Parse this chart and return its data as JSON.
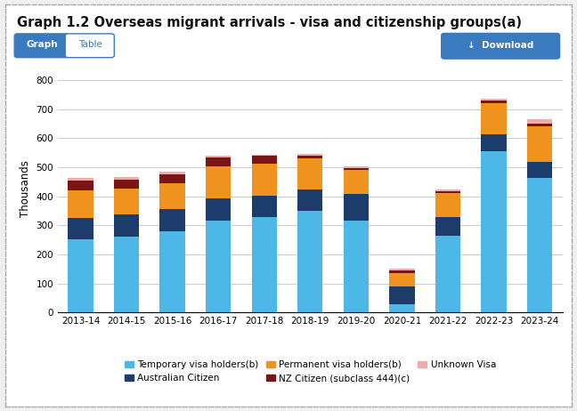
{
  "title": "Graph 1.2 Overseas migrant arrivals - visa and citizenship groups(a)",
  "ylabel": "Thousands",
  "categories": [
    "2013-14",
    "2014-15",
    "2015-16",
    "2016-17",
    "2017-18",
    "2018-19",
    "2019-20",
    "2020-21",
    "2021-22",
    "2022-23",
    "2023-24"
  ],
  "series": {
    "Temporary visa holders(b)": [
      253,
      262,
      280,
      315,
      330,
      350,
      315,
      28,
      265,
      555,
      462
    ],
    "Australian Citizen": [
      72,
      75,
      75,
      78,
      72,
      75,
      92,
      62,
      65,
      58,
      58
    ],
    "Permanent visa holders(b)": [
      95,
      90,
      90,
      110,
      110,
      105,
      83,
      45,
      80,
      108,
      120
    ],
    "NZ Citizen (subclass 444)(c)": [
      35,
      30,
      30,
      30,
      27,
      10,
      7,
      10,
      8,
      8,
      10
    ],
    "Unknown Visa": [
      8,
      8,
      10,
      7,
      5,
      5,
      5,
      5,
      5,
      8,
      15
    ]
  },
  "colors": {
    "Temporary visa holders(b)": "#4db8e8",
    "Australian Citizen": "#1c3d6b",
    "Permanent visa holders(b)": "#f0931e",
    "NZ Citizen (subclass 444)(c)": "#7b1414",
    "Unknown Visa": "#f5aaaa"
  },
  "ylim": [
    0,
    850
  ],
  "yticks": [
    0,
    100,
    200,
    300,
    400,
    500,
    600,
    700,
    800
  ],
  "outer_bg": "#f0f0f0",
  "card_bg": "#ffffff",
  "header_bg": "#ffffff",
  "plot_bg": "#ffffff",
  "grid_color": "#cccccc",
  "title_fontsize": 10.5,
  "axis_fontsize": 8.5,
  "tick_fontsize": 7.5,
  "legend_fontsize": 7.5,
  "legend_order": [
    "Temporary visa holders(b)",
    "Australian Citizen",
    "Permanent visa holders(b)",
    "NZ Citizen (subclass 444)(c)",
    "Unknown Visa"
  ]
}
